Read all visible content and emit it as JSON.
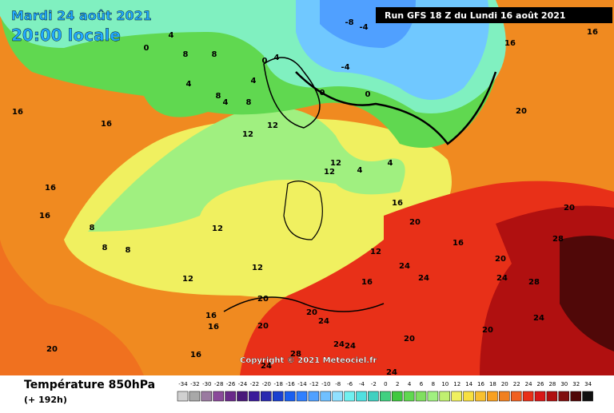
{
  "header": {
    "date": "Mardi 24 août 2021",
    "time": "20:00 locale",
    "run": "Run GFS 18 Z du Lundi 16 août 2021"
  },
  "map": {
    "copyright": "Copyright © 2021 Meteociel.fr",
    "contour_labels": [
      -8,
      -4,
      0,
      4,
      8,
      8,
      4,
      8,
      4,
      8,
      4,
      0,
      4,
      -4,
      0,
      0,
      12,
      12,
      12,
      12,
      4,
      4,
      16,
      8,
      8,
      8,
      12,
      12,
      12,
      12,
      16,
      16,
      16,
      16,
      16,
      16,
      16,
      16,
      20,
      20,
      20,
      20,
      24,
      20,
      16,
      24,
      24,
      20,
      24,
      28,
      28,
      20,
      20,
      24,
      20,
      20,
      16,
      16,
      24,
      24,
      24,
      28,
      24
    ]
  },
  "footer": {
    "title": "Température 850hPa",
    "lead": "(+ 192h)"
  },
  "scale": {
    "labels": [
      -34,
      -32,
      -30,
      -28,
      -26,
      -24,
      -22,
      -20,
      -18,
      -16,
      -14,
      -12,
      -10,
      -8,
      -6,
      -4,
      -2,
      0,
      2,
      4,
      6,
      8,
      10,
      12,
      14,
      16,
      18,
      20,
      22,
      24,
      26,
      28,
      30,
      32,
      34
    ],
    "colors": [
      "#d0d0d0",
      "#a8a8a8",
      "#9a7aa0",
      "#8a4a9a",
      "#6a2a8a",
      "#4a1a7a",
      "#3a1a9a",
      "#2a2ab0",
      "#1a40d0",
      "#1a60f0",
      "#3080ff",
      "#50a0ff",
      "#70c0ff",
      "#90e0ff",
      "#70f0f0",
      "#50e0e0",
      "#40d0c0",
      "#40d080",
      "#40c840",
      "#60d850",
      "#80e060",
      "#a0f080",
      "#c0f070",
      "#f0f060",
      "#f8e040",
      "#f8c030",
      "#f8a020",
      "#f08020",
      "#f06020",
      "#e83018",
      "#d81818",
      "#b01010",
      "#801010",
      "#500808",
      "#101010"
    ]
  }
}
